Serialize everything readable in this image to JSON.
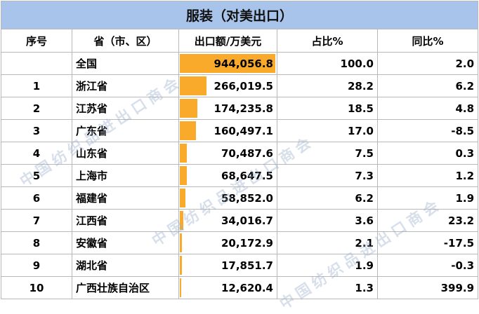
{
  "title": "服装（对美出口）",
  "headers": [
    "序号",
    "省（市、区）",
    "出口额/万美元",
    "占比%",
    "同比%"
  ],
  "max_export": 944056.8,
  "rows": [
    {
      "rank": "",
      "province": "全国",
      "export": "944,056.8",
      "export_value": 944056.8,
      "share": "100.0",
      "yoy": "2.0"
    },
    {
      "rank": "1",
      "province": "浙江省",
      "export": "266,019.5",
      "export_value": 266019.5,
      "share": "28.2",
      "yoy": "6.2"
    },
    {
      "rank": "2",
      "province": "江苏省",
      "export": "174,235.8",
      "export_value": 174235.8,
      "share": "18.5",
      "yoy": "4.8"
    },
    {
      "rank": "3",
      "province": "广东省",
      "export": "160,497.1",
      "export_value": 160497.1,
      "share": "17.0",
      "yoy": "-8.5"
    },
    {
      "rank": "4",
      "province": "山东省",
      "export": "70,487.6",
      "export_value": 70487.6,
      "share": "7.5",
      "yoy": "0.3"
    },
    {
      "rank": "5",
      "province": "上海市",
      "export": "68,647.5",
      "export_value": 68647.5,
      "share": "7.3",
      "yoy": "1.2"
    },
    {
      "rank": "6",
      "province": "福建省",
      "export": "58,852.0",
      "export_value": 58852.0,
      "share": "6.2",
      "yoy": "1.9"
    },
    {
      "rank": "7",
      "province": "江西省",
      "export": "34,016.7",
      "export_value": 34016.7,
      "share": "3.6",
      "yoy": "23.2"
    },
    {
      "rank": "8",
      "province": "安徽省",
      "export": "20,172.9",
      "export_value": 20172.9,
      "share": "2.1",
      "yoy": "-17.5"
    },
    {
      "rank": "9",
      "province": "湖北省",
      "export": "17,851.7",
      "export_value": 17851.7,
      "share": "1.9",
      "yoy": "-0.3"
    },
    {
      "rank": "10",
      "province": "广西壮族自治区",
      "export": "12,620.4",
      "export_value": 12620.4,
      "share": "1.3",
      "yoy": "399.9"
    }
  ],
  "watermark": "中国纺织品进出口商会",
  "colors": {
    "title_bg": "#a9c4eb",
    "bar": "#f9aa2b",
    "grid": "#b8b8b8"
  }
}
